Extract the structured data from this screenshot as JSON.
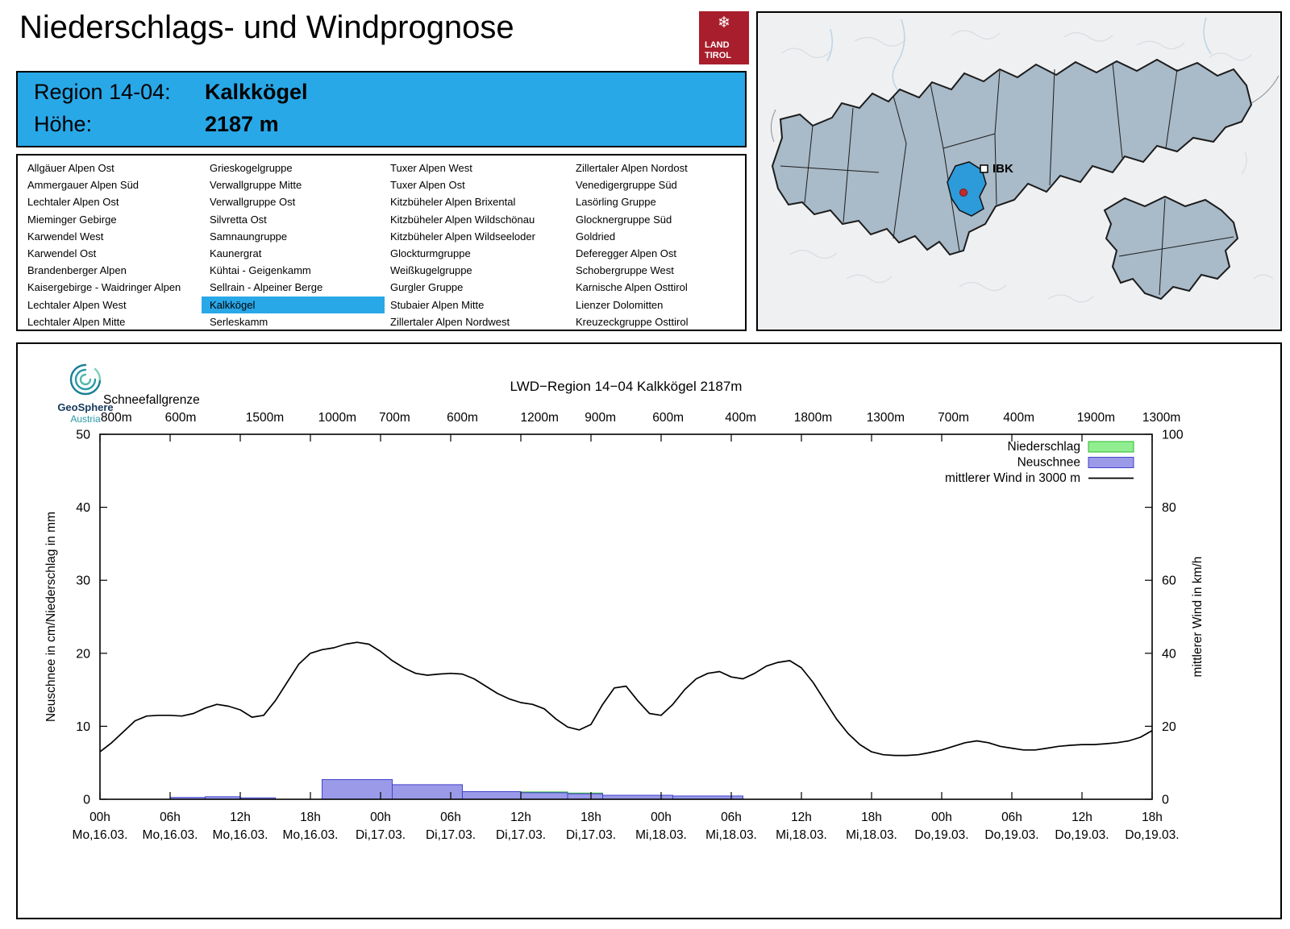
{
  "page": {
    "title": "Niederschlags- und Windprognose"
  },
  "logo": {
    "land": "LAND",
    "tirol": "TIROL",
    "snowflake": "❄"
  },
  "region_box": {
    "region_label": "Region 14-04:",
    "region_value": "Kalkkögel",
    "altitude_label": "Höhe:",
    "altitude_value": "2187 m"
  },
  "region_list": {
    "selected": "Kalkkögel",
    "columns": [
      [
        "Allgäuer Alpen Ost",
        "Ammergauer Alpen Süd",
        "Lechtaler Alpen Ost",
        "Mieminger Gebirge",
        "Karwendel West",
        "Karwendel Ost",
        "Brandenberger Alpen",
        "Kaisergebirge - Waidringer Alpen",
        "Lechtaler Alpen West",
        "Lechtaler Alpen Mitte"
      ],
      [
        "Grieskogelgruppe",
        "Verwallgruppe Mitte",
        "Verwallgruppe Ost",
        "Silvretta Ost",
        "Samnaungruppe",
        "Kaunergrat",
        "Kühtai - Geigenkamm",
        "Sellrain - Alpeiner Berge",
        "Kalkkögel",
        "Serleskamm"
      ],
      [
        "Tuxer Alpen West",
        "Tuxer Alpen Ost",
        "Kitzbüheler Alpen Brixental",
        "Kitzbüheler Alpen Wildschönau",
        "Kitzbüheler Alpen Wildseeloder",
        "Glockturmgruppe",
        "Weißkugelgruppe",
        "Gurgler Gruppe",
        "Stubaier Alpen Mitte",
        "Zillertaler Alpen Nordwest"
      ],
      [
        "Zillertaler Alpen Nordost",
        "Venedigergruppe Süd",
        "Lasörling Gruppe",
        "Glocknergruppe Süd",
        "Goldried",
        "Deferegger Alpen Ost",
        "Schobergruppe West",
        "Karnische Alpen Osttirol",
        "Lienzer Dolomitten",
        "Kreuzeckgruppe Osttirol"
      ]
    ]
  },
  "map": {
    "marker_label": "IBK"
  },
  "geosphere": {
    "line1": "GeoSphere",
    "line2": "Austria"
  },
  "colors": {
    "accent_blue": "#29a8e8",
    "bar_snow_fill": "#9a9ae8",
    "bar_snow_border": "#4343cf",
    "bar_precip_fill": "#90ee90",
    "bar_precip_border": "#2db82d",
    "wind_line": "#000000",
    "logo_red": "#a81e2c",
    "map_highlight": "#2d9ad9"
  },
  "chart_data": {
    "type": "line+bar",
    "title": "LWD−Region 14−04 Kalkkögel 2187m",
    "top_axis_label": "Schneefallgrenze",
    "ylabel_left": "Neuschnee in cm/Niederschlag in mm",
    "ylabel_right": "mittlerer Wind in km/h",
    "ylim_left": [
      0,
      50
    ],
    "ylim_right": [
      0,
      100
    ],
    "x_hours_range": [
      0,
      90
    ],
    "yticks_left": [
      0,
      10,
      20,
      30,
      40,
      50
    ],
    "yticks_right": [
      0,
      20,
      40,
      60,
      80,
      100
    ],
    "xticks": [
      {
        "hour": 0,
        "time": "00h",
        "date": "Mo,16.03."
      },
      {
        "hour": 6,
        "time": "06h",
        "date": "Mo,16.03."
      },
      {
        "hour": 12,
        "time": "12h",
        "date": "Mo,16.03."
      },
      {
        "hour": 18,
        "time": "18h",
        "date": "Mo,16.03."
      },
      {
        "hour": 24,
        "time": "00h",
        "date": "Di,17.03."
      },
      {
        "hour": 30,
        "time": "06h",
        "date": "Di,17.03."
      },
      {
        "hour": 36,
        "time": "12h",
        "date": "Di,17.03."
      },
      {
        "hour": 42,
        "time": "18h",
        "date": "Di,17.03."
      },
      {
        "hour": 48,
        "time": "00h",
        "date": "Mi,18.03."
      },
      {
        "hour": 54,
        "time": "06h",
        "date": "Mi,18.03."
      },
      {
        "hour": 60,
        "time": "12h",
        "date": "Mi,18.03."
      },
      {
        "hour": 66,
        "time": "18h",
        "date": "Mi,18.03."
      },
      {
        "hour": 72,
        "time": "00h",
        "date": "Do,19.03."
      },
      {
        "hour": 78,
        "time": "06h",
        "date": "Do,19.03."
      },
      {
        "hour": 84,
        "time": "12h",
        "date": "Do,19.03."
      },
      {
        "hour": 90,
        "time": "18h",
        "date": "Do,19.03."
      }
    ],
    "snowline_labels": [
      {
        "hour": 1.4,
        "label": "800m"
      },
      {
        "hour": 6.9,
        "label": "600m"
      },
      {
        "hour": 14.1,
        "label": "1500m"
      },
      {
        "hour": 20.3,
        "label": "1000m"
      },
      {
        "hour": 25.2,
        "label": "700m"
      },
      {
        "hour": 31.0,
        "label": "600m"
      },
      {
        "hour": 37.6,
        "label": "1200m"
      },
      {
        "hour": 42.8,
        "label": "900m"
      },
      {
        "hour": 48.6,
        "label": "600m"
      },
      {
        "hour": 54.8,
        "label": "400m"
      },
      {
        "hour": 61.0,
        "label": "1800m"
      },
      {
        "hour": 67.2,
        "label": "1300m"
      },
      {
        "hour": 73.0,
        "label": "700m"
      },
      {
        "hour": 78.6,
        "label": "400m"
      },
      {
        "hour": 85.2,
        "label": "1900m"
      },
      {
        "hour": 90.8,
        "label": "1300m"
      }
    ],
    "legend": [
      {
        "label": "Niederschlag",
        "type": "bar",
        "color": "#90ee90",
        "border": "#2db82d"
      },
      {
        "label": "Neuschnee",
        "type": "bar",
        "color": "#9a9ae8",
        "border": "#4343cf"
      },
      {
        "label": "mittlerer Wind in 3000 m",
        "type": "line",
        "color": "#000000"
      }
    ],
    "wind_series": {
      "name": "mittlerer Wind in 3000 m",
      "unit": "km/h",
      "hour_step": 1,
      "values_kmh": [
        13,
        15.5,
        18.5,
        21.5,
        22.8,
        23,
        23,
        22.8,
        23.5,
        25,
        26,
        25.5,
        24.5,
        22.5,
        23,
        27,
        32,
        37,
        40,
        41,
        41.5,
        42.5,
        43,
        42.5,
        40.5,
        38,
        36,
        34.5,
        34,
        34.3,
        34.5,
        34.3,
        33,
        31,
        29,
        27.5,
        26.5,
        26,
        24.8,
        22,
        19.8,
        19,
        20.5,
        26,
        30.5,
        31,
        27,
        23.5,
        23,
        26,
        30,
        33,
        34.5,
        35,
        33.5,
        33,
        34.5,
        36.5,
        37.5,
        38,
        36,
        32,
        27,
        22,
        18,
        15,
        13,
        12.2,
        12,
        12,
        12.2,
        12.8,
        13.5,
        14.5,
        15.5,
        16,
        15.5,
        14.5,
        14,
        13.5,
        13.5,
        14,
        14.5,
        14.8,
        15,
        15,
        15.2,
        15.5,
        16,
        17,
        18.8
      ]
    },
    "neuschnee_bars": [
      {
        "from": 6,
        "to": 9,
        "value": 0.25
      },
      {
        "from": 9,
        "to": 12,
        "value": 0.35
      },
      {
        "from": 12,
        "to": 15,
        "value": 0.2
      },
      {
        "from": 19,
        "to": 25,
        "value": 2.7
      },
      {
        "from": 25,
        "to": 31,
        "value": 2.0
      },
      {
        "from": 31,
        "to": 36,
        "value": 1.05
      },
      {
        "from": 36,
        "to": 40,
        "value": 0.9
      },
      {
        "from": 40,
        "to": 43,
        "value": 0.75
      },
      {
        "from": 43,
        "to": 49,
        "value": 0.55
      },
      {
        "from": 49,
        "to": 55,
        "value": 0.45
      }
    ],
    "niederschlag_bars": [
      {
        "from": 36,
        "to": 40,
        "value": 1.0
      },
      {
        "from": 40,
        "to": 43,
        "value": 0.85
      }
    ]
  }
}
